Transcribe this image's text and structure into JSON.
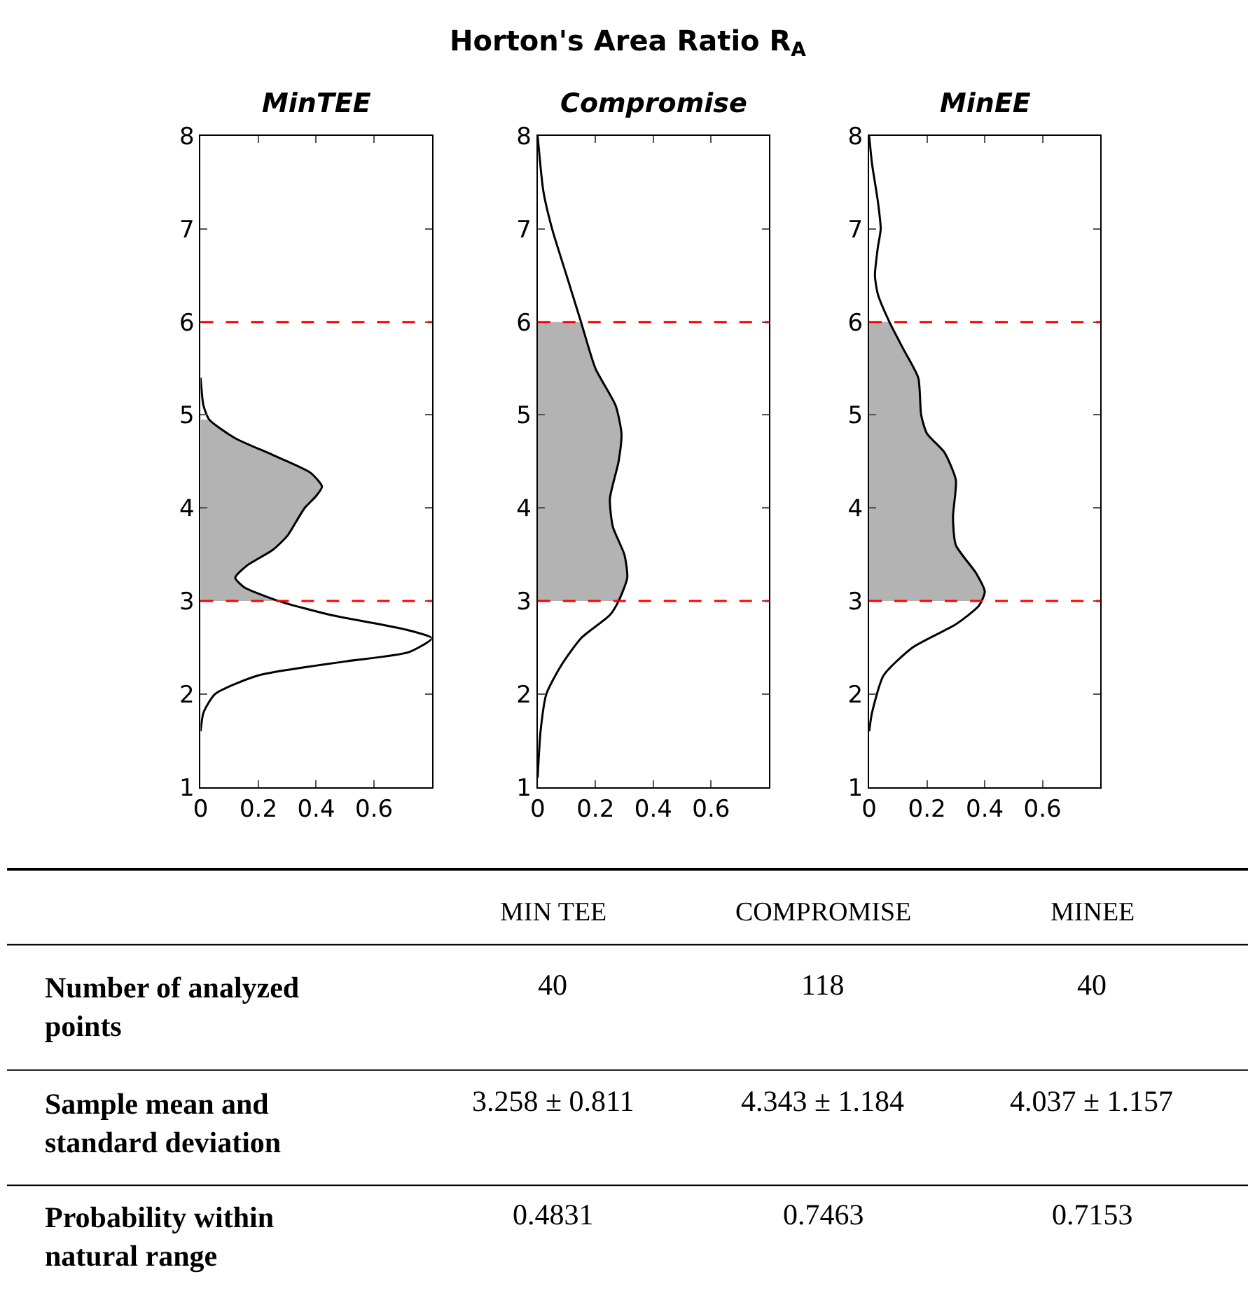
{
  "chart_data": [
    {
      "type": "line",
      "subtitle": "MinTEE",
      "xlim": [
        0,
        0.8
      ],
      "xticks": [
        0,
        0.2,
        0.4,
        0.6
      ],
      "ylim": [
        1,
        8
      ],
      "yticks": [
        1,
        2,
        3,
        4,
        5,
        6,
        7,
        8
      ],
      "marker": "none",
      "series": [
        {
          "type": "area",
          "color": "#b3b3b3",
          "x": [
            0,
            0.27,
            0.15,
            0.12,
            0.16,
            0.25,
            0.3,
            0.33,
            0.36,
            0.4,
            0.42,
            0.38,
            0.25,
            0.12,
            0.03,
            0
          ],
          "values": [
            3.0,
            3.0,
            3.15,
            3.25,
            3.38,
            3.55,
            3.7,
            3.85,
            4.0,
            4.13,
            4.23,
            4.38,
            4.57,
            4.75,
            4.95,
            4.95
          ]
        },
        {
          "type": "line",
          "color": "#000000",
          "x": [
            0,
            0.01,
            0.05,
            0.2,
            0.5,
            0.72,
            0.8,
            0.7,
            0.45,
            0.27,
            0.15,
            0.12,
            0.16,
            0.25,
            0.3,
            0.33,
            0.36,
            0.4,
            0.42,
            0.38,
            0.25,
            0.12,
            0.03,
            0.01,
            0
          ],
          "values": [
            1.6,
            1.8,
            2.0,
            2.2,
            2.35,
            2.45,
            2.6,
            2.7,
            2.85,
            3.0,
            3.15,
            3.25,
            3.38,
            3.55,
            3.7,
            3.85,
            4.0,
            4.13,
            4.23,
            4.38,
            4.57,
            4.75,
            4.95,
            5.1,
            5.4
          ]
        }
      ],
      "ref_lines": [
        {
          "axis": "y",
          "value": 3,
          "color": "#ff0000",
          "line_style": "dashed"
        },
        {
          "axis": "y",
          "value": 6,
          "color": "#ff0000",
          "line_style": "dashed"
        }
      ]
    },
    {
      "type": "line",
      "title": "Horton's Area Ratio R$_{A}$",
      "subtitle": "Compromise",
      "xlim": [
        0,
        0.8
      ],
      "xticks": [
        0,
        0.2,
        0.4,
        0.6
      ],
      "ylim": [
        1,
        8
      ],
      "yticks": [
        1,
        2,
        3,
        4,
        5,
        6,
        7,
        8
      ],
      "marker": "none",
      "series": [
        {
          "type": "area",
          "color": "#b3b3b3",
          "x": [
            0,
            0.28,
            0.31,
            0.3,
            0.26,
            0.25,
            0.28,
            0.29,
            0.27,
            0.2,
            0.15,
            0
          ],
          "values": [
            3.0,
            3.0,
            3.25,
            3.5,
            3.8,
            4.1,
            4.5,
            4.8,
            5.1,
            5.5,
            6.0,
            6.0
          ]
        },
        {
          "type": "line",
          "color": "#000000",
          "x": [
            0,
            0.01,
            0.03,
            0.08,
            0.15,
            0.25,
            0.28,
            0.31,
            0.3,
            0.26,
            0.25,
            0.28,
            0.29,
            0.27,
            0.2,
            0.15,
            0.1,
            0.05,
            0.02,
            0
          ],
          "values": [
            1.1,
            1.6,
            2.0,
            2.3,
            2.6,
            2.85,
            3.0,
            3.25,
            3.5,
            3.8,
            4.1,
            4.5,
            4.8,
            5.1,
            5.5,
            6.0,
            6.5,
            7.0,
            7.4,
            8.0
          ]
        }
      ],
      "ref_lines": [
        {
          "axis": "y",
          "value": 3,
          "color": "#ff0000",
          "line_style": "dashed"
        },
        {
          "axis": "y",
          "value": 6,
          "color": "#ff0000",
          "line_style": "dashed"
        }
      ]
    },
    {
      "type": "line",
      "subtitle": "MinEE",
      "xlim": [
        0,
        0.8
      ],
      "xticks": [
        0,
        0.2,
        0.4,
        0.6
      ],
      "ylim": [
        1,
        8
      ],
      "yticks": [
        1,
        2,
        3,
        4,
        5,
        6,
        7,
        8
      ],
      "marker": "none",
      "series": [
        {
          "type": "area",
          "color": "#b3b3b3",
          "x": [
            0,
            0.39,
            0.4,
            0.37,
            0.3,
            0.29,
            0.3,
            0.26,
            0.2,
            0.18,
            0.17,
            0.12,
            0.07,
            0
          ],
          "values": [
            3.0,
            3.0,
            3.1,
            3.3,
            3.6,
            3.9,
            4.3,
            4.6,
            4.8,
            5.0,
            5.4,
            5.7,
            6.0,
            6.0
          ]
        },
        {
          "type": "line",
          "color": "#000000",
          "x": [
            0,
            0.01,
            0.05,
            0.15,
            0.3,
            0.38,
            0.4,
            0.37,
            0.3,
            0.29,
            0.3,
            0.26,
            0.2,
            0.18,
            0.17,
            0.12,
            0.07,
            0.03,
            0.02,
            0.03,
            0.04,
            0.03,
            0.01,
            0
          ],
          "values": [
            1.6,
            1.8,
            2.2,
            2.5,
            2.75,
            2.95,
            3.1,
            3.3,
            3.6,
            3.9,
            4.3,
            4.6,
            4.8,
            5.0,
            5.4,
            5.7,
            6.0,
            6.3,
            6.5,
            6.8,
            7.0,
            7.3,
            7.7,
            8.0
          ]
        }
      ],
      "ref_lines": [
        {
          "axis": "y",
          "value": 3,
          "color": "#ff0000",
          "line_style": "dashed"
        },
        {
          "axis": "y",
          "value": 6,
          "color": "#ff0000",
          "line_style": "dashed"
        }
      ]
    },
    {
      "type": "other",
      "categories": [
        "MIN TEE",
        "COMPROMISE",
        "MINEE"
      ],
      "y_categories": [
        "Number of analyzed points",
        "Sample mean and standard deviation",
        "Probability within natural range"
      ],
      "cell_labels": [
        [
          "40",
          "118",
          "40"
        ],
        [
          "3.258 ± 0.811",
          "4.343 ± 1.184",
          "4.037 ± 1.157"
        ],
        [
          "0.4831",
          "0.7463",
          "0.7153"
        ]
      ]
    }
  ]
}
